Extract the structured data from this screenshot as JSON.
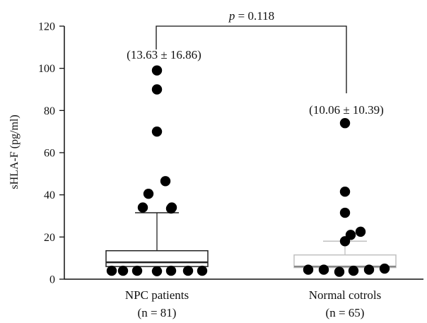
{
  "chart_data": {
    "type": "box",
    "title": "",
    "xlabel": "",
    "ylabel": "sHLA-F (pg/ml)",
    "ylim": [
      0,
      120
    ],
    "yticks": [
      0,
      20,
      40,
      60,
      80,
      100,
      120
    ],
    "significance": {
      "prefix": "p",
      "text": " = 0.118",
      "between": [
        "NPC patients",
        "Normal cotrols"
      ]
    },
    "groups": [
      {
        "name": "NPC patients",
        "n_label": "(n = 81)",
        "mean_sd_label": "(13.63 ± 16.86)",
        "box": {
          "q1": 6,
          "median": 8,
          "q3": 13.5,
          "whisker_high": 31.5
        },
        "box_color": "#222222",
        "median_color": "#222222",
        "points": [
          99,
          90,
          70,
          46.5,
          40.5,
          34,
          33.5,
          34,
          4,
          4,
          4,
          3.8,
          4,
          4,
          4
        ]
      },
      {
        "name": "Normal cotrols",
        "n_label": "(n = 65)",
        "mean_sd_label": "(10.06 ± 10.39)",
        "box": {
          "q1": 5.5,
          "median": 6,
          "q3": 11.5,
          "whisker_high": 18
        },
        "box_color": "#c0c0c0",
        "median_color": "#888888",
        "points": [
          74,
          41.5,
          31.5,
          22.5,
          21,
          18,
          4.5,
          4.5,
          3.5,
          4,
          4.5,
          5
        ]
      }
    ],
    "point_color": "#000000"
  }
}
